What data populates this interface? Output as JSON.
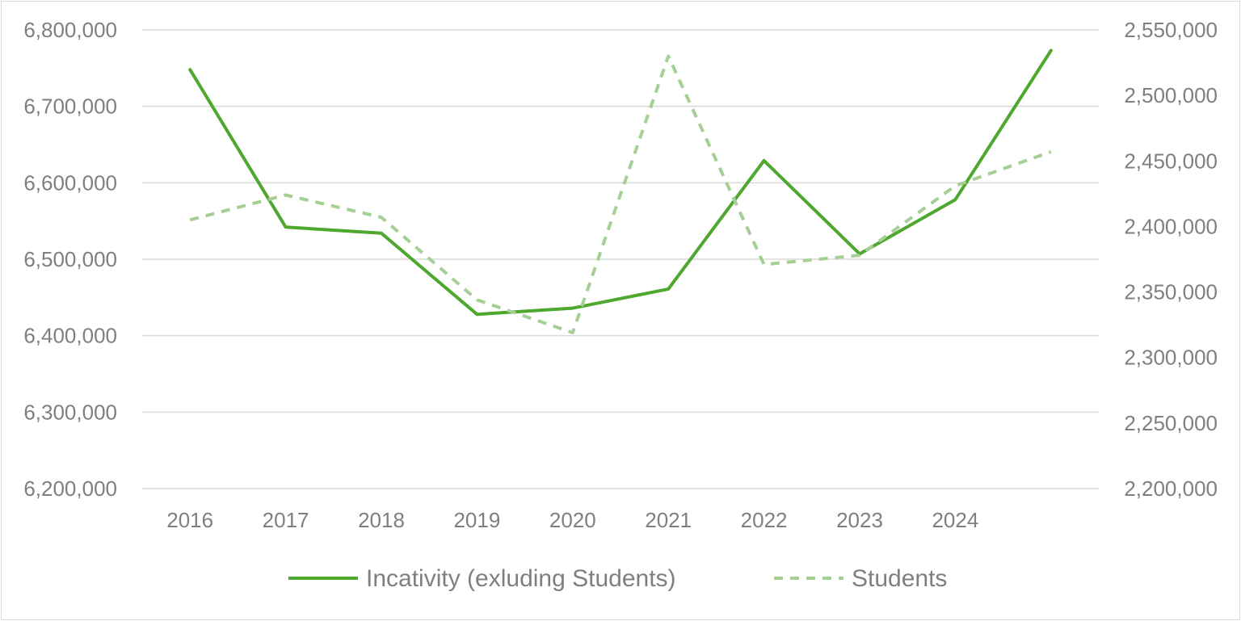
{
  "chart_data": {
    "type": "line",
    "title": "",
    "xlabel": "",
    "ylabel": "",
    "categories": [
      "2016",
      "2017",
      "2018",
      "2019",
      "2020",
      "2021",
      "2022",
      "2023",
      "2024",
      ""
    ],
    "series": [
      {
        "name": "Incativity (exluding Students)",
        "axis": "left",
        "color": "#4ea72e",
        "style": "solid",
        "values": [
          6748000,
          6542000,
          6534000,
          6428000,
          6436000,
          6461000,
          6629000,
          6507000,
          6578000,
          6773000
        ]
      },
      {
        "name": "Students",
        "axis": "right",
        "color": "#a5cf94",
        "style": "dashed",
        "values": [
          2405000,
          2424000,
          2407000,
          2344000,
          2319000,
          2530000,
          2371000,
          2378000,
          2431000,
          2457000
        ]
      }
    ],
    "y_left": {
      "ylim": [
        6200000,
        6800000
      ],
      "ticks": [
        "6,200,000",
        "6,300,000",
        "6,400,000",
        "6,500,000",
        "6,600,000",
        "6,700,000",
        "6,800,000"
      ]
    },
    "y_right": {
      "ylim": [
        2200000,
        2550000
      ],
      "ticks": [
        "2,200,000",
        "2,250,000",
        "2,300,000",
        "2,350,000",
        "2,400,000",
        "2,450,000",
        "2,500,000",
        "2,550,000"
      ]
    },
    "grid": true,
    "legend_position": "bottom"
  }
}
